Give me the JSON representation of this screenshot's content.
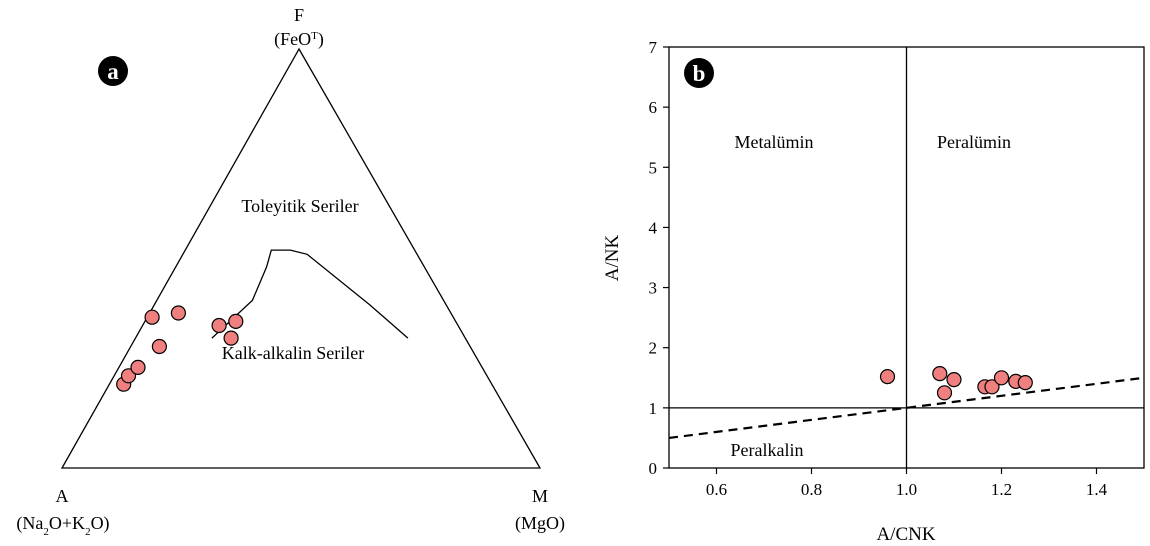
{
  "colors": {
    "marker_fill": "#f08080",
    "marker_stroke": "#000000",
    "line": "#000000",
    "badge_fill": "#000000",
    "badge_text": "#ffffff"
  },
  "chart_data": [
    {
      "type": "scatter",
      "subtype": "ternary (AFM)",
      "panel_label": "a",
      "vertices": {
        "top": {
          "label": "F",
          "sublabel": "(FeO",
          "sup": "T",
          "sublabel_end": ")"
        },
        "left": {
          "label": "A",
          "sublabel": "(Na",
          "sub1": "2",
          "mid": "O+K",
          "sub2": "2",
          "sublabel_end": "O)"
        },
        "right": {
          "label": "M",
          "sublabel": "(MgO)"
        }
      },
      "field_labels": {
        "upper": "Toleyitik Seriler",
        "lower": "Kalk-alkalin Seriler"
      },
      "boundary_curve_AFM": [
        {
          "A": 0.53,
          "F": 0.31,
          "M": 0.16
        },
        {
          "A": 0.4,
          "F": 0.4,
          "M": 0.2
        },
        {
          "A": 0.33,
          "F": 0.48,
          "M": 0.19
        },
        {
          "A": 0.3,
          "F": 0.52,
          "M": 0.18
        },
        {
          "A": 0.26,
          "F": 0.52,
          "M": 0.22
        },
        {
          "A": 0.23,
          "F": 0.51,
          "M": 0.26
        },
        {
          "A": 0.16,
          "F": 0.39,
          "M": 0.45
        },
        {
          "A": 0.12,
          "F": 0.31,
          "M": 0.57
        }
      ],
      "samples_AFM": [
        {
          "A": 0.77,
          "F": 0.2,
          "M": 0.03
        },
        {
          "A": 0.75,
          "F": 0.22,
          "M": 0.03
        },
        {
          "A": 0.72,
          "F": 0.24,
          "M": 0.04
        },
        {
          "A": 0.65,
          "F": 0.29,
          "M": 0.06
        },
        {
          "A": 0.63,
          "F": 0.36,
          "M": 0.01
        },
        {
          "A": 0.57,
          "F": 0.37,
          "M": 0.06
        },
        {
          "A": 0.5,
          "F": 0.34,
          "M": 0.16
        },
        {
          "A": 0.49,
          "F": 0.31,
          "M": 0.2
        },
        {
          "A": 0.46,
          "F": 0.35,
          "M": 0.19
        }
      ]
    },
    {
      "type": "scatter",
      "panel_label": "b",
      "xlabel": "A/CNK",
      "ylabel": "A/NK",
      "xlim": [
        0.5,
        1.5
      ],
      "ylim": [
        0,
        7
      ],
      "xticks": [
        "0.6",
        "0.8",
        "1.0",
        "1.2",
        "1.4"
      ],
      "xtick_values": [
        0.6,
        0.8,
        1.0,
        1.2,
        1.4
      ],
      "yticks": [
        "0",
        "1",
        "2",
        "3",
        "4",
        "5",
        "6",
        "7"
      ],
      "ytick_values": [
        0,
        1,
        2,
        3,
        4,
        5,
        6,
        7
      ],
      "field_labels": {
        "upper_left": "Metalümin",
        "upper_right": "Peralümin",
        "lower": "Peralkalin"
      },
      "reference_lines": {
        "vertical_x": 1.0,
        "horizontal_y": 1.0,
        "dashed_from": [
          0.5,
          0.5
        ],
        "dashed_to": [
          1.5,
          1.5
        ]
      },
      "points": [
        {
          "x": 0.96,
          "y": 1.52
        },
        {
          "x": 1.07,
          "y": 1.57
        },
        {
          "x": 1.08,
          "y": 1.25
        },
        {
          "x": 1.1,
          "y": 1.47
        },
        {
          "x": 1.165,
          "y": 1.35
        },
        {
          "x": 1.18,
          "y": 1.35
        },
        {
          "x": 1.2,
          "y": 1.5
        },
        {
          "x": 1.23,
          "y": 1.44
        },
        {
          "x": 1.25,
          "y": 1.42
        }
      ]
    }
  ]
}
